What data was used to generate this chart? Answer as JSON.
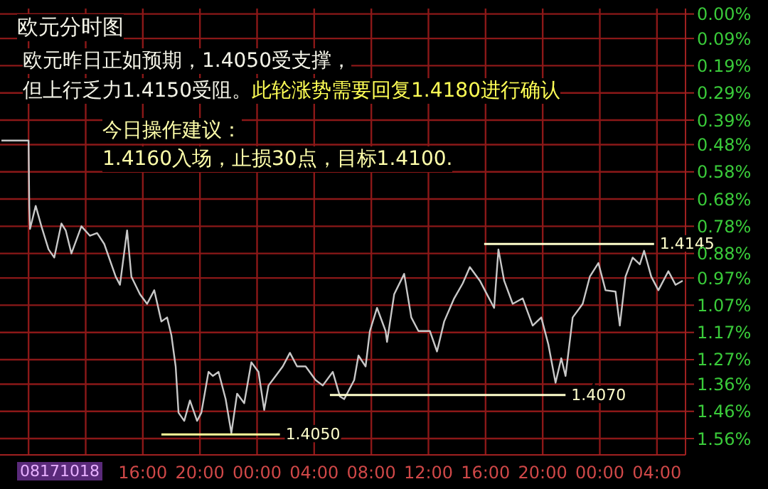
{
  "chart_data": {
    "type": "line",
    "title": "欧元分时图",
    "annotations": [
      "欧元昨日正如预期，1.4050受支撑，",
      "但上行乏力1.4150受阻。",
      "此轮涨势需要回复1.4180进行确认",
      "今日操作建议：",
      "1.4160入场，止损30点，目标1.4100.",
      "08171018",
      {
        "text": "1.4050",
        "x": "--08-18T01:36",
        "y": 1.545
      },
      {
        "text": "1.4070",
        "x": "--08-18T21:36",
        "y": 1.4
      },
      {
        "text": "1.4145",
        "x": "--08-19T03:48",
        "y": 0.845
      }
    ],
    "xlim": [
      "--08-17T06:00",
      "--08-19T06:00"
    ],
    "ylim": [
      1.62,
      -0.02
    ],
    "xticks": [
      {
        "value": "--08-17T08:00",
        "label": null
      },
      {
        "value": "--08-17T12:00",
        "label": null
      },
      {
        "value": "--08-17T16:00",
        "label": "16:00"
      },
      {
        "value": "--08-17T20:00",
        "label": "20:00"
      },
      {
        "value": "--08-18T00:00",
        "label": "00:00"
      },
      {
        "value": "--08-18T04:00",
        "label": "04:00"
      },
      {
        "value": "--08-18T08:00",
        "label": "08:00"
      },
      {
        "value": "--08-18T12:00",
        "label": "12:00"
      },
      {
        "value": "--08-18T16:00",
        "label": "16:00"
      },
      {
        "value": "--08-18T20:00",
        "label": "20:00"
      },
      {
        "value": "--08-19T00:00",
        "label": "00:00"
      },
      {
        "value": "--08-19T04:00",
        "label": "04:00"
      }
    ],
    "yticks": [
      {
        "value": 0,
        "label": "0.00%"
      },
      {
        "value": 0.09,
        "label": "0.09%"
      },
      {
        "value": 0.19,
        "label": "0.19%"
      },
      {
        "value": 0.29,
        "label": "0.29%"
      },
      {
        "value": 0.39,
        "label": "0.39%"
      },
      {
        "value": 0.48,
        "label": "0.48%"
      },
      {
        "value": 0.58,
        "label": "0.58%"
      },
      {
        "value": 0.68,
        "label": "0.68%"
      },
      {
        "value": 0.78,
        "label": "0.78%"
      },
      {
        "value": 0.88,
        "label": "0.88%"
      },
      {
        "value": 0.97,
        "label": "0.97%"
      },
      {
        "value": 1.07,
        "label": "1.07%"
      },
      {
        "value": 1.17,
        "label": "1.17%"
      },
      {
        "value": 1.27,
        "label": "1.27%"
      },
      {
        "value": 1.36,
        "label": "1.36%"
      },
      {
        "value": 1.46,
        "label": "1.46%"
      },
      {
        "value": 1.56,
        "label": "1.56%"
      }
    ],
    "grid": true,
    "series": [
      {
        "color": "#c8c8c8",
        "x": [
          "--08-17T06:06",
          "--08-17T08:00",
          "--08-17T08:03",
          "--08-17T08:06",
          "--08-17T08:30",
          "--08-17T08:54",
          "--08-17T09:24",
          "--08-17T09:48",
          "--08-17T10:18",
          "--08-17T10:36",
          "--08-17T11:00",
          "--08-17T11:42",
          "--08-17T12:18",
          "--08-17T12:48",
          "--08-17T13:18",
          "--08-17T14:06",
          "--08-17T14:24",
          "--08-17T14:54",
          "--08-17T15:12",
          "--08-17T15:48",
          "--08-17T16:18",
          "--08-17T16:48",
          "--08-17T17:18",
          "--08-17T17:42",
          "--08-17T18:00",
          "--08-17T18:18",
          "--08-17T18:30",
          "--08-17T18:54",
          "--08-17T19:18",
          "--08-17T19:48",
          "--08-17T20:06",
          "--08-17T20:36",
          "--08-17T20:54",
          "--08-17T21:18",
          "--08-17T21:48",
          "--08-17T22:12",
          "--08-17T22:36",
          "--08-17T23:06",
          "--08-17T23:36",
          "--08-18T00:06",
          "--08-18T00:30",
          "--08-18T00:48",
          "--08-18T01:18",
          "--08-18T01:48",
          "--08-18T02:18",
          "--08-18T02:48",
          "--08-18T03:24",
          "--08-18T04:06",
          "--08-18T04:36",
          "--08-18T05:18",
          "--08-18T05:48",
          "--08-18T06:06",
          "--08-18T06:48",
          "--08-18T07:06",
          "--08-18T07:36",
          "--08-18T07:54",
          "--08-18T08:24",
          "--08-18T09:00",
          "--08-18T09:06",
          "--08-18T09:36",
          "--08-18T10:18",
          "--08-18T10:48",
          "--08-18T11:18",
          "--08-18T12:06",
          "--08-18T12:36",
          "--08-18T13:06",
          "--08-18T13:48",
          "--08-18T14:24",
          "--08-18T14:54",
          "--08-18T15:36",
          "--08-18T16:06",
          "--08-18T16:36",
          "--08-18T16:54",
          "--08-18T17:18",
          "--08-18T17:54",
          "--08-18T18:36",
          "--08-18T19:18",
          "--08-18T19:54",
          "--08-18T20:24",
          "--08-18T20:54",
          "--08-18T21:18",
          "--08-18T21:36",
          "--08-18T22:06",
          "--08-18T22:48",
          "--08-18T23:18",
          "--08-18T23:54",
          "--08-19T00:24",
          "--08-19T01:06",
          "--08-19T01:24",
          "--08-19T01:48",
          "--08-19T02:18",
          "--08-19T02:48",
          "--08-19T03:06",
          "--08-19T03:36",
          "--08-19T04:06",
          "--08-19T04:48",
          "--08-19T05:18",
          "--08-19T05:48"
        ],
        "values": [
          0.465,
          0.465,
          0.705,
          0.79,
          0.705,
          0.78,
          0.865,
          0.895,
          0.77,
          0.795,
          0.88,
          0.78,
          0.815,
          0.805,
          0.845,
          0.965,
          0.995,
          0.795,
          0.965,
          1.03,
          1.065,
          1.015,
          1.13,
          1.115,
          1.18,
          1.295,
          1.465,
          1.495,
          1.42,
          1.495,
          1.465,
          1.315,
          1.33,
          1.315,
          1.415,
          1.54,
          1.395,
          1.43,
          1.28,
          1.315,
          1.455,
          1.365,
          1.33,
          1.295,
          1.245,
          1.295,
          1.295,
          1.345,
          1.365,
          1.315,
          1.405,
          1.415,
          1.345,
          1.255,
          1.295,
          1.165,
          1.08,
          1.165,
          1.205,
          1.03,
          0.955,
          1.115,
          1.165,
          1.165,
          1.24,
          1.13,
          1.045,
          0.99,
          0.93,
          0.98,
          1.03,
          1.08,
          0.865,
          0.98,
          1.065,
          1.045,
          1.145,
          1.115,
          1.215,
          1.355,
          1.265,
          1.33,
          1.115,
          1.065,
          0.965,
          0.915,
          1.015,
          1.02,
          1.145,
          0.965,
          0.895,
          0.92,
          0.87,
          0.965,
          1.015,
          0.945,
          0.995,
          0.98
        ]
      },
      {
        "color": "#ffff99",
        "x": [
          "--08-17T17:18",
          "--08-18T01:36"
        ],
        "values": [
          1.545,
          1.545
        ]
      },
      {
        "color": "#ffffcc",
        "x": [
          "--08-18T05:06",
          "--08-18T21:36"
        ],
        "values": [
          1.4,
          1.4
        ]
      },
      {
        "color": "#ffffcc",
        "x": [
          "--08-18T15:54",
          "--08-19T03:48"
        ],
        "values": [
          0.845,
          0.845
        ]
      }
    ]
  }
}
